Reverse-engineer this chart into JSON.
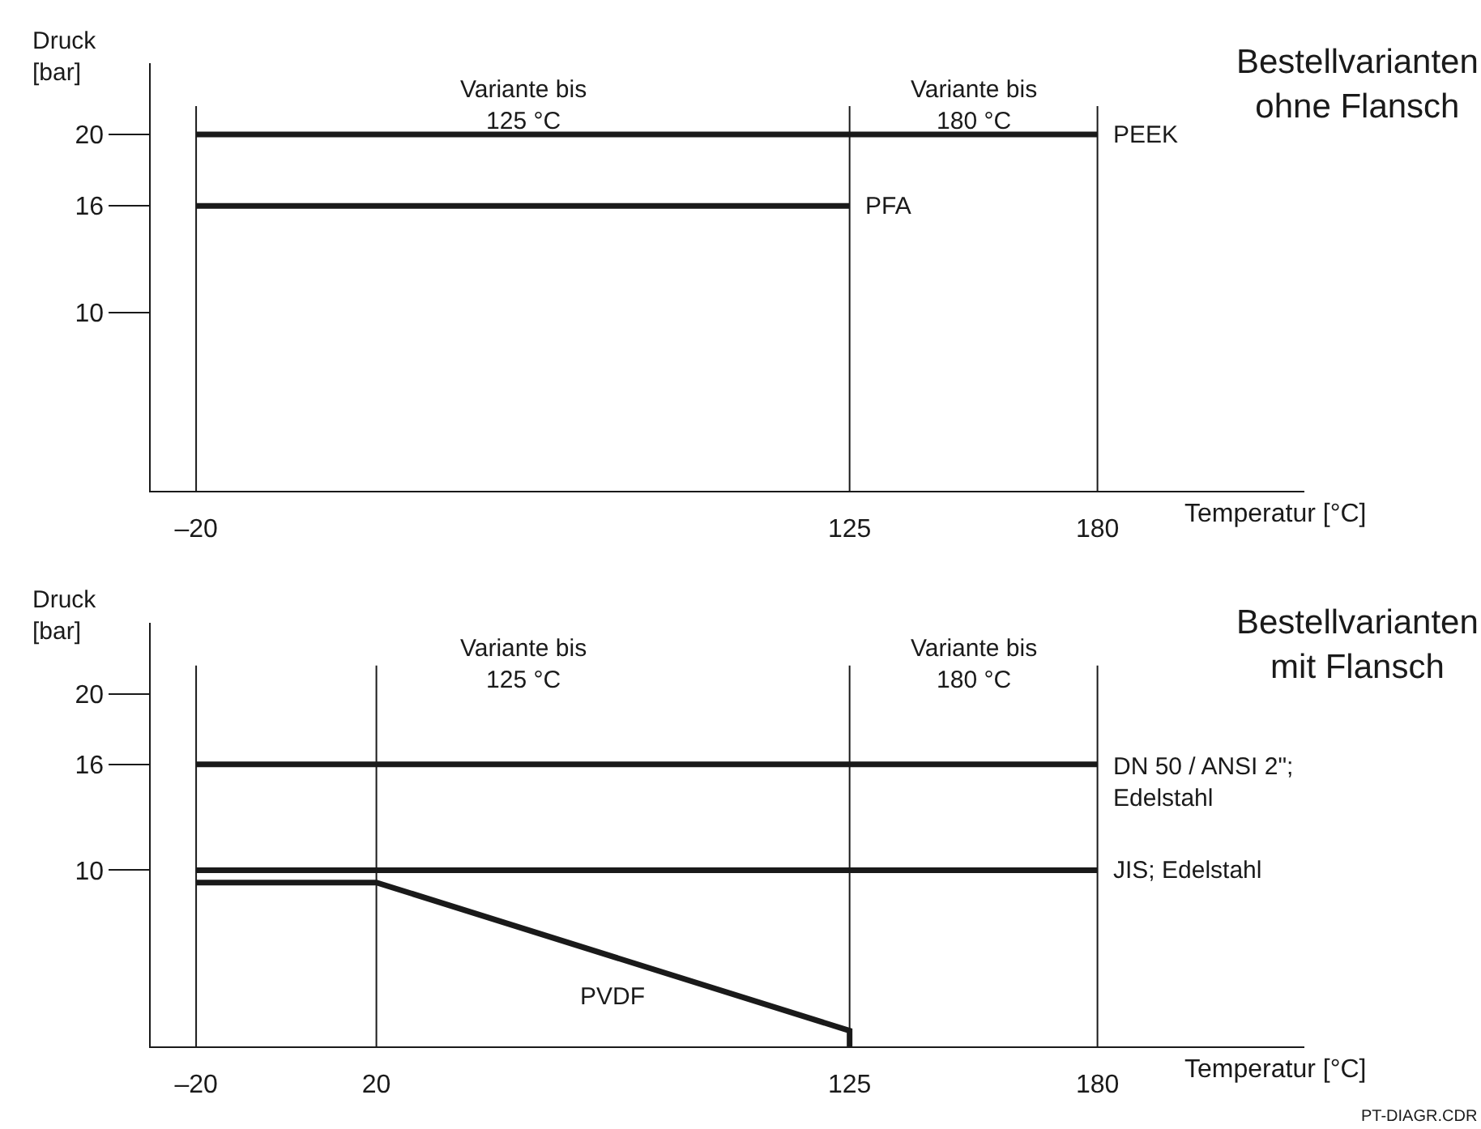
{
  "chart_data": [
    {
      "type": "line",
      "title": "Bestellvarianten\nohne Flansch",
      "xlabel": "Temperatur [°C]",
      "ylabel": "Druck\n[bar]",
      "xlim": [
        -30,
        226
      ],
      "ylim": [
        0,
        24
      ],
      "xticks": [
        {
          "value": -20,
          "label": "–20"
        },
        125,
        180
      ],
      "yticks": [
        10,
        16,
        20
      ],
      "legend": false,
      "marker": "none",
      "line_style": "solid",
      "series": [
        {
          "name": "PEEK",
          "color": "#1a1a1a",
          "x": [
            -20,
            180
          ],
          "values": [
            20,
            20
          ]
        },
        {
          "name": "PFA",
          "color": "#1a1a1a",
          "x": [
            -20,
            125
          ],
          "values": [
            16,
            16
          ]
        }
      ],
      "ref_lines": [
        {
          "axis": "x",
          "value": -20,
          "color": "#1a1a1a"
        },
        {
          "axis": "x",
          "value": 125,
          "color": "#1a1a1a"
        },
        {
          "axis": "x",
          "value": 180,
          "color": "#1a1a1a"
        }
      ],
      "annotations": [
        "Variante bis\n125 °C",
        "Variante bis\n180 °C"
      ]
    },
    {
      "type": "line",
      "title": "Bestellvarianten\nmit Flansch",
      "xlabel": "Temperatur [°C]",
      "ylabel": "Druck\n[bar]",
      "xlim": [
        -30,
        226
      ],
      "ylim": [
        0,
        24
      ],
      "xticks": [
        {
          "value": -20,
          "label": "–20"
        },
        20,
        125,
        180
      ],
      "yticks": [
        10,
        16,
        20
      ],
      "legend": false,
      "marker": "none",
      "line_style": "solid",
      "series": [
        {
          "name": "DN 50 / ANSI 2\";\nEdelstahl",
          "color": "#1a1a1a",
          "x": [
            -20,
            180
          ],
          "values": [
            16,
            16
          ]
        },
        {
          "name": "JIS; Edelstahl",
          "color": "#1a1a1a",
          "x": [
            -20,
            180
          ],
          "values": [
            10,
            10
          ]
        },
        {
          "name": "PVDF",
          "color": "#1a1a1a",
          "x": [
            -20,
            20,
            125,
            125
          ],
          "values": [
            9.3,
            9.3,
            0.9,
            0
          ]
        }
      ],
      "ref_lines": [
        {
          "axis": "x",
          "value": -20,
          "color": "#1a1a1a"
        },
        {
          "axis": "x",
          "value": 20,
          "color": "#1a1a1a"
        },
        {
          "axis": "x",
          "value": 125,
          "color": "#1a1a1a"
        },
        {
          "axis": "x",
          "value": 180,
          "color": "#1a1a1a"
        }
      ],
      "annotations": [
        "Variante bis\n125 °C",
        "Variante bis\n180 °C",
        "PT-DIAGR.CDR"
      ]
    }
  ]
}
